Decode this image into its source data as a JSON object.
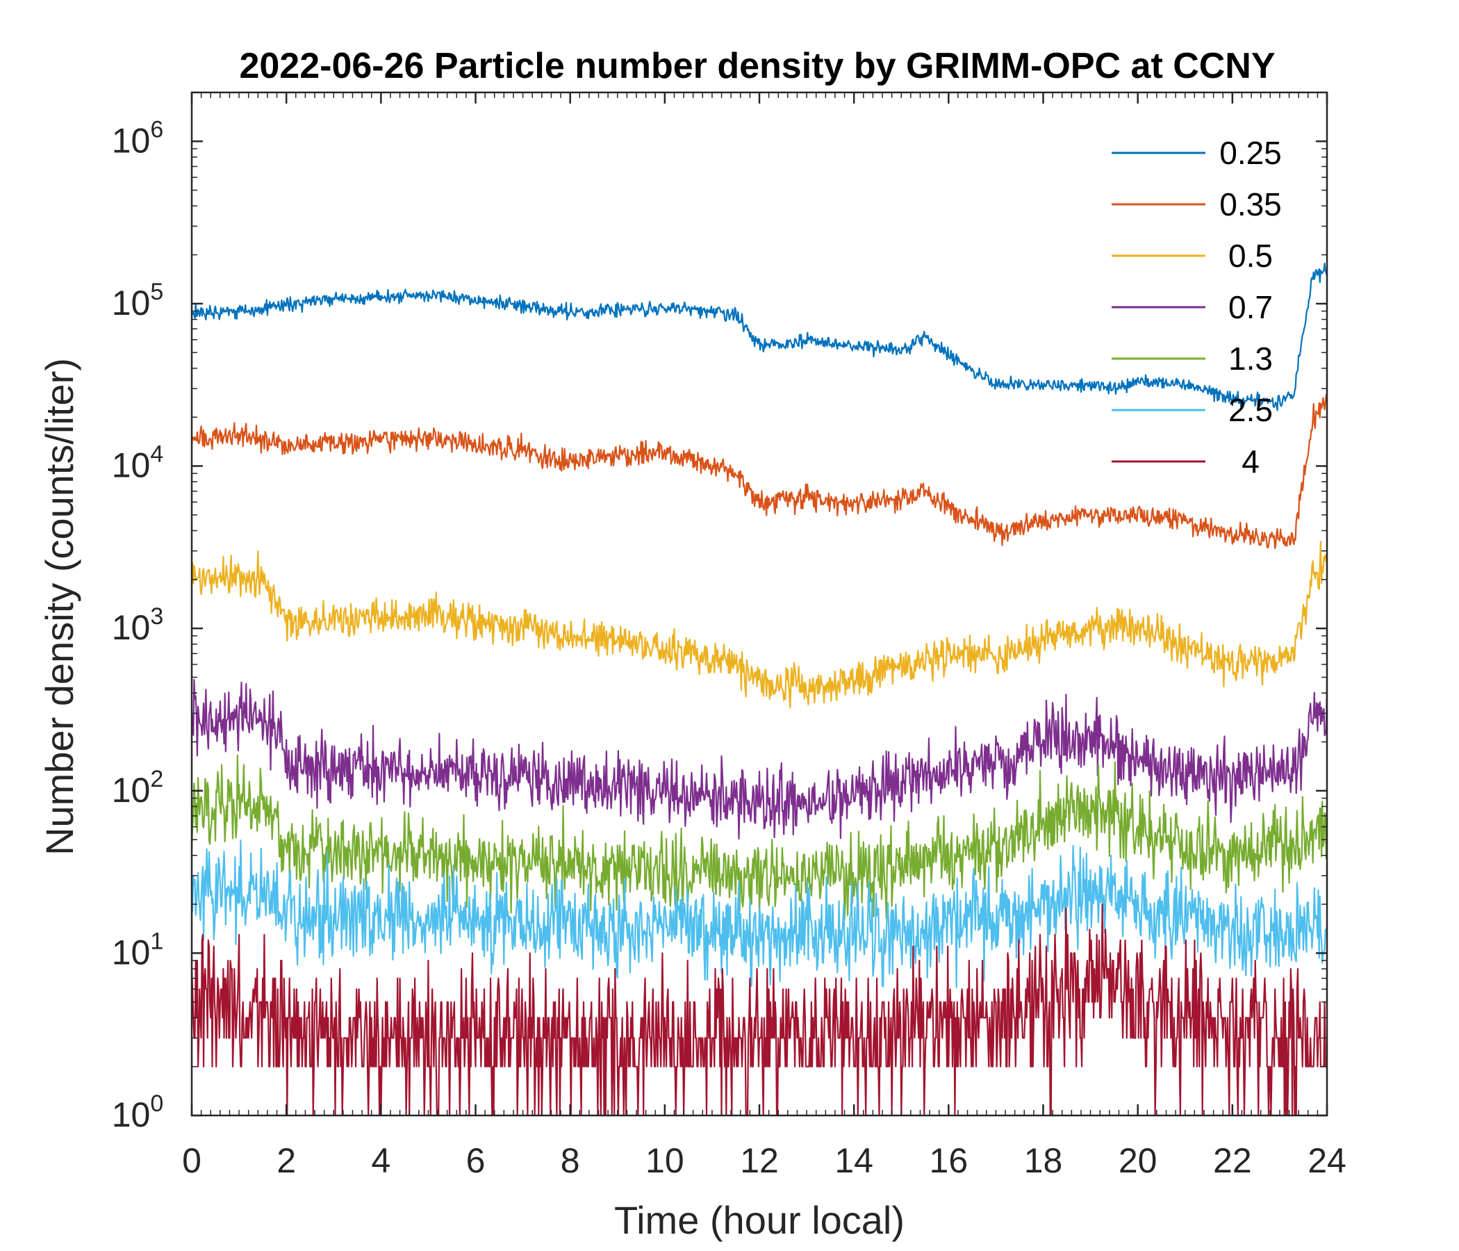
{
  "chart_data": {
    "type": "line",
    "title": "2022-06-26 Particle number density by GRIMM-OPC at CCNY",
    "xlabel": "Time (hour local)",
    "ylabel": "Number density (counts/liter)",
    "xlim": [
      0,
      24
    ],
    "ylim": [
      1,
      2000000
    ],
    "yscale": "log",
    "x_ticks": [
      0,
      2,
      4,
      6,
      8,
      10,
      12,
      14,
      16,
      18,
      20,
      22,
      24
    ],
    "x_tick_labels": [
      "0",
      "2",
      "4",
      "6",
      "8",
      "10",
      "12",
      "14",
      "16",
      "18",
      "20",
      "22",
      "24"
    ],
    "y_ticks": [
      1,
      10,
      100,
      1000,
      10000,
      100000,
      1000000
    ],
    "y_tick_base": "10",
    "y_tick_exponents": [
      "0",
      "1",
      "2",
      "3",
      "4",
      "5",
      "6"
    ],
    "legend_position": "top-right",
    "x": [
      0,
      1,
      1.5,
      2,
      3,
      4,
      4.8,
      5.5,
      6,
      7,
      8,
      9,
      10,
      11,
      11.5,
      12,
      12.3,
      13,
      14,
      15,
      15.5,
      16,
      17,
      18,
      19,
      19.5,
      20,
      21,
      22,
      23,
      23.3,
      23.7,
      24
    ],
    "series": [
      {
        "name": "0.25",
        "color": "#0072BD",
        "noise": 0.03,
        "values": [
          88000,
          90000,
          95000,
          100000,
          105000,
          110000,
          112000,
          110000,
          105000,
          97000,
          88000,
          92000,
          94000,
          90000,
          85000,
          55000,
          55000,
          60000,
          55000,
          52000,
          62000,
          48000,
          32000,
          32000,
          31000,
          30000,
          33000,
          32000,
          26000,
          25000,
          28000,
          150000,
          155000
        ]
      },
      {
        "name": "0.35",
        "color": "#D95319",
        "noise": 0.05,
        "values": [
          14500,
          15500,
          14500,
          13500,
          13800,
          14500,
          15000,
          14500,
          13800,
          12500,
          10500,
          11500,
          12000,
          10000,
          9000,
          6000,
          6000,
          6500,
          6000,
          6200,
          7000,
          5500,
          4000,
          4500,
          5000,
          5000,
          5000,
          4500,
          3700,
          3500,
          3600,
          20000,
          25000
        ]
      },
      {
        "name": "0.5",
        "color": "#EDB120",
        "noise": 0.08,
        "values": [
          2100,
          2100,
          2000,
          1100,
          1100,
          1200,
          1200,
          1150,
          1100,
          1050,
          880,
          850,
          750,
          650,
          600,
          480,
          450,
          450,
          480,
          600,
          650,
          700,
          650,
          850,
          1000,
          1100,
          1000,
          750,
          600,
          650,
          700,
          2200,
          2500
        ]
      },
      {
        "name": "0.7",
        "color": "#7E2F8E",
        "noise": 0.14,
        "values": [
          270,
          290,
          280,
          150,
          140,
          140,
          130,
          130,
          125,
          120,
          110,
          110,
          100,
          95,
          90,
          90,
          85,
          85,
          95,
          110,
          130,
          140,
          140,
          200,
          220,
          190,
          160,
          130,
          120,
          130,
          140,
          280,
          300
        ]
      },
      {
        "name": "1.3",
        "color": "#77AC30",
        "noise": 0.16,
        "values": [
          80,
          85,
          85,
          45,
          42,
          40,
          40,
          38,
          38,
          37,
          36,
          34,
          33,
          33,
          32,
          32,
          31,
          30,
          30,
          32,
          36,
          40,
          42,
          65,
          80,
          75,
          60,
          45,
          40,
          45,
          45,
          50,
          55
        ]
      },
      {
        "name": "2.5",
        "color": "#4DBEEE",
        "noise": 0.19,
        "values": [
          25,
          25,
          24,
          18,
          17,
          17,
          16,
          16,
          15,
          15,
          15,
          15,
          14,
          14,
          14,
          13,
          13,
          13,
          13,
          14,
          15,
          16,
          16,
          20,
          22,
          20,
          18,
          16,
          14,
          13,
          13,
          13,
          13
        ]
      },
      {
        "name": "4",
        "color": "#A2142F",
        "noise": 0.3,
        "values": [
          5,
          5,
          4,
          3,
          3,
          3,
          3,
          3,
          3,
          3,
          3,
          3,
          3,
          3,
          3,
          3,
          3,
          3,
          3,
          3,
          3.5,
          4,
          4,
          5,
          6,
          6,
          5,
          4,
          3,
          3,
          3,
          3,
          3
        ]
      }
    ]
  }
}
